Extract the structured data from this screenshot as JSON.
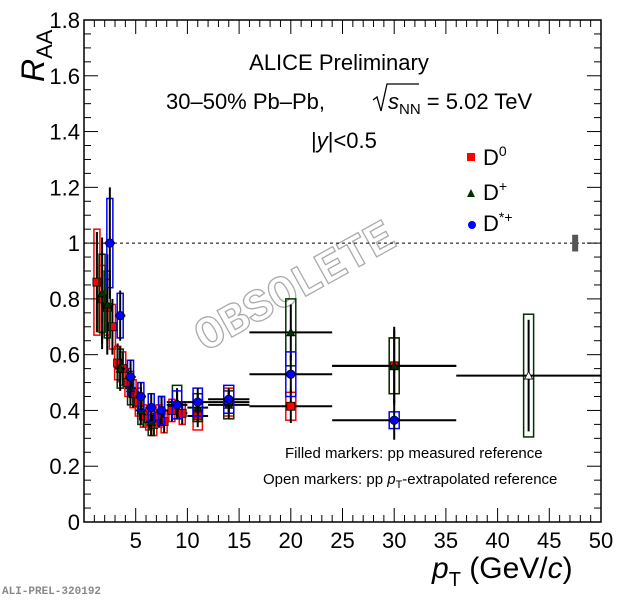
{
  "chart_data": {
    "type": "scatter",
    "title": "ALICE Preliminary",
    "subtitle_prefix": "30–50% Pb–Pb, ",
    "subtitle_sqrt_s": "s",
    "subtitle_sqrt_sub": "NN",
    "subtitle_value": " = 5.02 TeV",
    "rapidity_y": "y",
    "rapidity_cut": "<0.5",
    "ylabel_main": "R",
    "ylabel_sub": "AA",
    "xlabel_p": "p",
    "xlabel_sub": "T",
    "xlabel_unit_pre": " (GeV/",
    "xlabel_unit_c": "c",
    "xlabel_unit_post": ")",
    "xlim": [
      0,
      50
    ],
    "ylim": [
      0,
      1.8
    ],
    "xticks": [
      5,
      10,
      15,
      20,
      25,
      30,
      35,
      40,
      45,
      50
    ],
    "xtick_labels": [
      "5",
      "10",
      "15",
      "20",
      "25",
      "30",
      "35",
      "40",
      "45",
      "50"
    ],
    "yticks": [
      0,
      0.2,
      0.4,
      0.6,
      0.8,
      1,
      1.2,
      1.4,
      1.6,
      1.8
    ],
    "ytick_labels": [
      "0",
      "0.2",
      "0.4",
      "0.6",
      "0.8",
      "1",
      "1.2",
      "1.4",
      "1.6",
      "1.8"
    ],
    "reference_line": 1,
    "legend": [
      {
        "name": "D",
        "sup": "0",
        "color": "#ff0000",
        "marker": "square"
      },
      {
        "name": "D",
        "sup": "+",
        "color": "#003300",
        "marker": "triangle"
      },
      {
        "name": "D",
        "sup": "*+",
        "color": "#0000ff",
        "marker": "circle"
      }
    ],
    "legend_placement": "top-right",
    "notes": [
      "Filled markers: pp measured reference",
      "Open markers: pp "
    ],
    "note_p": "p",
    "note_sub": "T",
    "note_post": "-extrapolated reference",
    "watermark": "OBSOLETE",
    "footer_id": "ALI-PREL-320192",
    "series": [
      {
        "name": "D0",
        "color": "#ff0000",
        "marker": "square",
        "points": [
          {
            "x": 1.25,
            "y": 0.86,
            "xerr": 0.25,
            "stat": 0.18,
            "syst": 0.19
          },
          {
            "x": 1.75,
            "y": 0.8,
            "xerr": 0.25,
            "stat": 0.16,
            "syst": 0.12
          },
          {
            "x": 2.25,
            "y": 0.77,
            "xerr": 0.25,
            "stat": 0.12,
            "syst": 0.1
          },
          {
            "x": 2.75,
            "y": 0.7,
            "xerr": 0.25,
            "stat": 0.1,
            "syst": 0.08
          },
          {
            "x": 3.25,
            "y": 0.57,
            "xerr": 0.25,
            "stat": 0.07,
            "syst": 0.06
          },
          {
            "x": 3.75,
            "y": 0.55,
            "xerr": 0.25,
            "stat": 0.06,
            "syst": 0.06
          },
          {
            "x": 4.25,
            "y": 0.5,
            "xerr": 0.25,
            "stat": 0.05,
            "syst": 0.05
          },
          {
            "x": 4.75,
            "y": 0.46,
            "xerr": 0.25,
            "stat": 0.05,
            "syst": 0.05
          },
          {
            "x": 5.25,
            "y": 0.43,
            "xerr": 0.25,
            "stat": 0.04,
            "syst": 0.05
          },
          {
            "x": 5.75,
            "y": 0.38,
            "xerr": 0.25,
            "stat": 0.04,
            "syst": 0.04
          },
          {
            "x": 6.25,
            "y": 0.37,
            "xerr": 0.25,
            "stat": 0.04,
            "syst": 0.04
          },
          {
            "x": 6.75,
            "y": 0.35,
            "xerr": 0.25,
            "stat": 0.04,
            "syst": 0.04
          },
          {
            "x": 7.25,
            "y": 0.38,
            "xerr": 0.25,
            "stat": 0.04,
            "syst": 0.04
          },
          {
            "x": 7.75,
            "y": 0.36,
            "xerr": 0.25,
            "stat": 0.04,
            "syst": 0.04
          },
          {
            "x": 8.5,
            "y": 0.4,
            "xerr": 0.5,
            "stat": 0.04,
            "syst": 0.04
          },
          {
            "x": 9.5,
            "y": 0.39,
            "xerr": 0.5,
            "stat": 0.04,
            "syst": 0.04
          },
          {
            "x": 11,
            "y": 0.38,
            "xerr": 1,
            "stat": 0.04,
            "syst": 0.05
          },
          {
            "x": 14,
            "y": 0.43,
            "xerr": 2,
            "stat": 0.04,
            "syst": 0.05
          },
          {
            "x": 20,
            "y": 0.415,
            "xerr": 4,
            "stat": 0.06,
            "syst": 0.05
          },
          {
            "x": 30,
            "y": 0.56,
            "xerr": 6,
            "stat": 0.13,
            "syst": 0.1
          }
        ]
      },
      {
        "name": "D+",
        "color": "#003300",
        "marker": "triangle",
        "points": [
          {
            "x": 1.75,
            "y": 0.82,
            "xerr": 0.25,
            "stat": 0.2,
            "syst": 0.14
          },
          {
            "x": 2.25,
            "y": 0.78,
            "xerr": 0.25,
            "stat": 0.18,
            "syst": 0.12
          },
          {
            "x": 3.5,
            "y": 0.55,
            "xerr": 0.5,
            "stat": 0.08,
            "syst": 0.07
          },
          {
            "x": 4.5,
            "y": 0.48,
            "xerr": 0.5,
            "stat": 0.06,
            "syst": 0.06
          },
          {
            "x": 5.5,
            "y": 0.4,
            "xerr": 0.5,
            "stat": 0.05,
            "syst": 0.05
          },
          {
            "x": 6.5,
            "y": 0.36,
            "xerr": 0.5,
            "stat": 0.05,
            "syst": 0.05
          },
          {
            "x": 7.5,
            "y": 0.4,
            "xerr": 0.5,
            "stat": 0.05,
            "syst": 0.05
          },
          {
            "x": 9,
            "y": 0.43,
            "xerr": 1,
            "stat": 0.05,
            "syst": 0.06
          },
          {
            "x": 11,
            "y": 0.41,
            "xerr": 1,
            "stat": 0.05,
            "syst": 0.05
          },
          {
            "x": 14,
            "y": 0.42,
            "xerr": 2,
            "stat": 0.05,
            "syst": 0.05
          },
          {
            "x": 20,
            "y": 0.68,
            "xerr": 4,
            "stat": 0.1,
            "syst": 0.12
          },
          {
            "x": 30,
            "y": 0.56,
            "xerr": 6,
            "stat": 0.14,
            "syst": 0.1
          },
          {
            "x": 43,
            "y": 0.525,
            "xerr": 7,
            "stat": 0.2,
            "syst": 0.22,
            "open": true
          }
        ]
      },
      {
        "name": "D*+",
        "color": "#0000ff",
        "marker": "circle",
        "points": [
          {
            "x": 2.5,
            "y": 1.0,
            "xerr": 0.5,
            "stat": 0.2,
            "syst": 0.16
          },
          {
            "x": 3.5,
            "y": 0.74,
            "xerr": 0.5,
            "stat": 0.09,
            "syst": 0.08
          },
          {
            "x": 4.5,
            "y": 0.52,
            "xerr": 0.5,
            "stat": 0.06,
            "syst": 0.06
          },
          {
            "x": 5.5,
            "y": 0.45,
            "xerr": 0.5,
            "stat": 0.05,
            "syst": 0.05
          },
          {
            "x": 6.5,
            "y": 0.41,
            "xerr": 0.5,
            "stat": 0.05,
            "syst": 0.05
          },
          {
            "x": 7.5,
            "y": 0.4,
            "xerr": 0.5,
            "stat": 0.05,
            "syst": 0.05
          },
          {
            "x": 9,
            "y": 0.42,
            "xerr": 1,
            "stat": 0.05,
            "syst": 0.05
          },
          {
            "x": 11,
            "y": 0.43,
            "xerr": 1,
            "stat": 0.05,
            "syst": 0.05
          },
          {
            "x": 14,
            "y": 0.44,
            "xerr": 2,
            "stat": 0.04,
            "syst": 0.05
          },
          {
            "x": 20,
            "y": 0.53,
            "xerr": 4,
            "stat": 0.07,
            "syst": 0.08
          },
          {
            "x": 30,
            "y": 0.365,
            "xerr": 6,
            "stat": 0.07,
            "syst": 0.03
          }
        ]
      }
    ],
    "normalization_uncertainty": {
      "x": 47.5,
      "low": 0.97,
      "high": 1.03,
      "color": "#555555"
    }
  }
}
